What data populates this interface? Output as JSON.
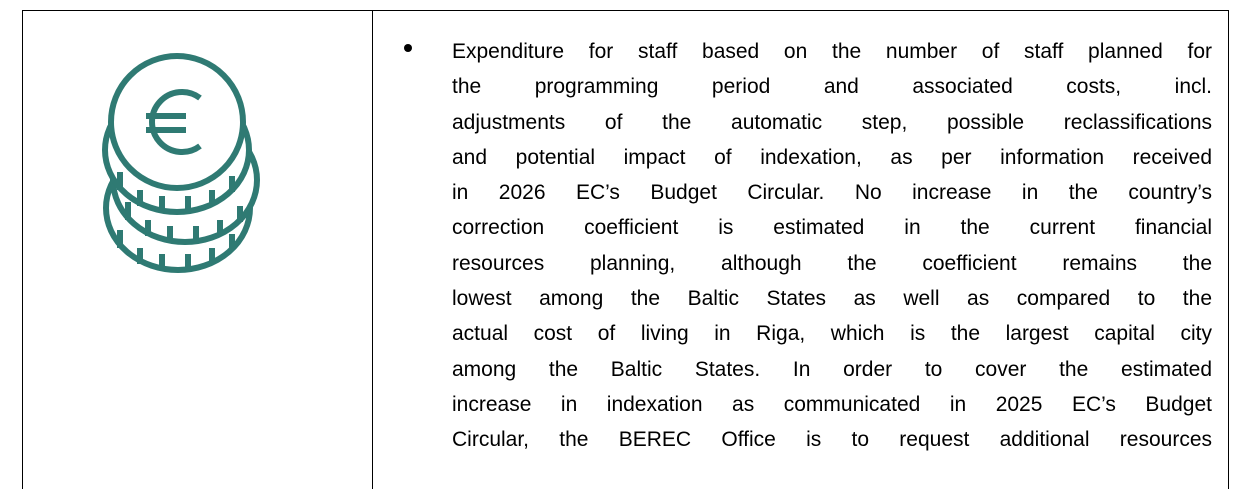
{
  "table": {
    "rows": [
      [
        {
          "icon": "euro-coins"
        },
        {
          "bullet": {
            "lines": [
              "Expenditure for staff based on the number of staff planned for",
              "the programming period and associated costs, incl.",
              "adjustments of the automatic step, possible reclassifications",
              "and potential impact of indexation, as per information received",
              "in 2026 EC’s Budget Circular. No increase in the country’s",
              "correction coefficient is estimated in the current financial",
              "resources planning, although the coefficient remains the",
              "lowest among the Baltic States as well as compared to the",
              "actual cost of living in Riga, which is the largest capital city",
              "among the Baltic States. In order to cover the estimated",
              "increase in indexation as communicated in 2025 EC’s Budget",
              "Circular, the BEREC Office is to request additional resources"
            ]
          }
        }
      ]
    ]
  }
}
